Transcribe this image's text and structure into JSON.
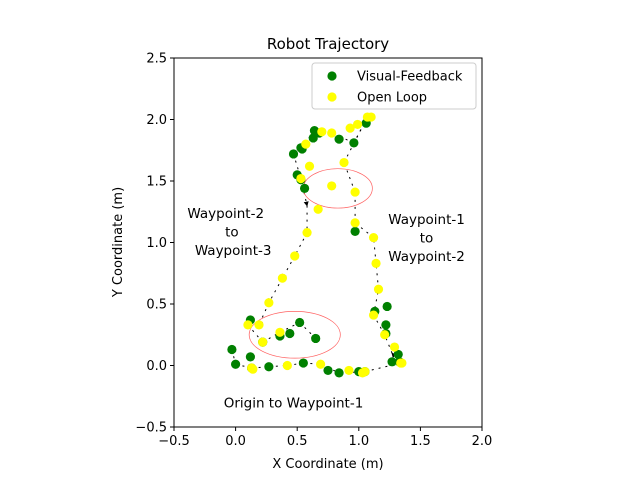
{
  "chart_data": {
    "type": "scatter",
    "title": "Robot Trajectory",
    "xlabel": "X Coordinate (m)",
    "ylabel": "Y Coordinate (m)",
    "xlim": [
      -0.5,
      2.0
    ],
    "ylim": [
      -0.5,
      2.5
    ],
    "xticks": [
      -0.5,
      0.0,
      0.5,
      1.0,
      1.5,
      2.0
    ],
    "xtick_labels": [
      "−0.5",
      "0.0",
      "0.5",
      "1.0",
      "1.5",
      "2.0"
    ],
    "yticks": [
      -0.5,
      0.0,
      0.5,
      1.0,
      1.5,
      2.0,
      2.5
    ],
    "ytick_labels": [
      "−0.5",
      "0.0",
      "0.5",
      "1.0",
      "1.5",
      "2.0",
      "2.5"
    ],
    "grid": false,
    "legend_position": "top-right",
    "series": [
      {
        "name": "Visual-Feedback",
        "color": "#008000",
        "points": [
          [
            -0.03,
            0.13
          ],
          [
            0.0,
            0.01
          ],
          [
            0.12,
            0.07
          ],
          [
            0.12,
            0.37
          ],
          [
            0.13,
            -0.02
          ],
          [
            0.22,
            0.19
          ],
          [
            0.27,
            -0.01
          ],
          [
            0.36,
            0.24
          ],
          [
            0.44,
            0.26
          ],
          [
            0.52,
            0.35
          ],
          [
            0.55,
            0.02
          ],
          [
            0.65,
            0.22
          ],
          [
            0.75,
            -0.04
          ],
          [
            0.84,
            -0.06
          ],
          [
            1.0,
            -0.05
          ],
          [
            1.05,
            -0.05
          ],
          [
            1.27,
            0.03
          ],
          [
            1.33,
            0.03
          ],
          [
            1.32,
            0.09
          ],
          [
            1.22,
            0.26
          ],
          [
            1.22,
            0.33
          ],
          [
            1.23,
            0.48
          ],
          [
            1.13,
            0.44
          ],
          [
            0.97,
            1.09
          ],
          [
            0.5,
            1.55
          ],
          [
            0.56,
            1.44
          ],
          [
            0.53,
            1.51
          ],
          [
            0.47,
            1.72
          ],
          [
            0.53,
            1.77
          ],
          [
            0.63,
            1.85
          ],
          [
            0.64,
            1.91
          ],
          [
            0.68,
            1.89
          ],
          [
            0.84,
            1.84
          ],
          [
            0.96,
            1.81
          ],
          [
            1.06,
            1.97
          ],
          [
            0.54,
            1.76
          ]
        ]
      },
      {
        "name": "Open Loop",
        "color": "#ffff00",
        "points": [
          [
            0.1,
            0.33
          ],
          [
            0.19,
            0.33
          ],
          [
            0.22,
            0.19
          ],
          [
            0.27,
            0.51
          ],
          [
            0.36,
            0.27
          ],
          [
            0.42,
            0.0
          ],
          [
            0.38,
            0.71
          ],
          [
            0.48,
            0.89
          ],
          [
            0.58,
            1.08
          ],
          [
            0.67,
            1.27
          ],
          [
            0.78,
            1.46
          ],
          [
            0.88,
            1.65
          ],
          [
            0.97,
            1.41
          ],
          [
            0.97,
            1.16
          ],
          [
            1.12,
            1.04
          ],
          [
            1.14,
            0.83
          ],
          [
            1.16,
            0.62
          ],
          [
            1.12,
            0.41
          ],
          [
            1.21,
            0.25
          ],
          [
            1.29,
            0.15
          ],
          [
            1.35,
            0.02
          ],
          [
            1.34,
            0.02
          ],
          [
            1.05,
            -0.05
          ],
          [
            1.03,
            -0.06
          ],
          [
            0.92,
            -0.04
          ],
          [
            0.69,
            0.01
          ],
          [
            0.13,
            -0.02
          ],
          [
            0.14,
            -0.03
          ],
          [
            0.6,
            1.62
          ],
          [
            0.53,
            1.52
          ],
          [
            0.57,
            1.8
          ],
          [
            0.7,
            1.9
          ],
          [
            0.78,
            1.89
          ],
          [
            0.93,
            1.93
          ],
          [
            0.99,
            1.96
          ],
          [
            1.07,
            2.02
          ],
          [
            1.1,
            2.02
          ]
        ]
      }
    ],
    "annotations": [
      {
        "text": "Waypoint-2",
        "x": -0.08,
        "y": 1.24
      },
      {
        "text": "to",
        "x": -0.03,
        "y": 1.09
      },
      {
        "text": "Waypoint-3",
        "x": -0.02,
        "y": 0.94
      },
      {
        "text": "Waypoint-1",
        "x": 1.55,
        "y": 1.19
      },
      {
        "text": "to",
        "x": 1.55,
        "y": 1.04
      },
      {
        "text": "Waypoint-2",
        "x": 1.55,
        "y": 0.89
      },
      {
        "text": "Origin to Waypoint-1",
        "x": 0.47,
        "y": -0.3
      }
    ],
    "ellipses": [
      {
        "cx": 0.48,
        "cy": 0.25,
        "rx": 0.37,
        "ry": 0.19
      },
      {
        "cx": 0.83,
        "cy": 1.44,
        "rx": 0.28,
        "ry": 0.16
      }
    ]
  }
}
